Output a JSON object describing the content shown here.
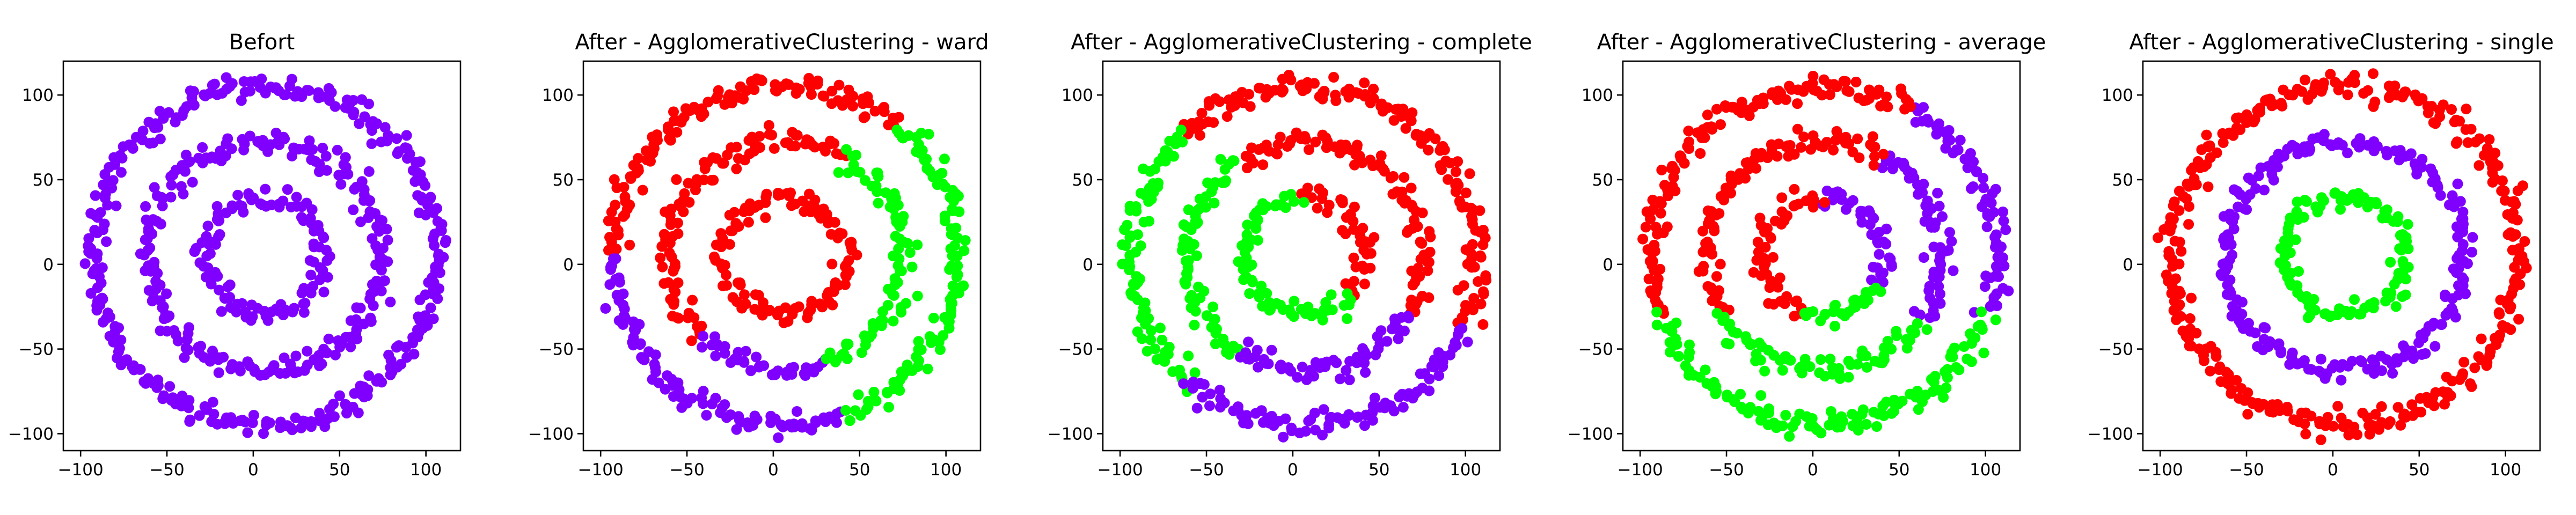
{
  "chart_data": [
    {
      "type": "scatter",
      "title": "Befort",
      "xlim": [
        -110,
        120
      ],
      "ylim": [
        -110,
        120
      ],
      "xticks": [
        -100,
        -50,
        0,
        50,
        100
      ],
      "yticks": [
        -100,
        -50,
        0,
        50,
        100
      ],
      "tick_labels_x": [
        "−100",
        "−50",
        "0",
        "50",
        "100"
      ],
      "tick_labels_y": [
        "−100",
        "−50",
        "0",
        "50",
        "100"
      ],
      "rings": [
        {
          "radius": 35,
          "center": [
            7,
            5
          ]
        },
        {
          "radius": 68,
          "center": [
            7,
            5
          ]
        },
        {
          "radius": 100,
          "center": [
            7,
            5
          ]
        }
      ],
      "point_noise": 5,
      "colors": {
        "purple": "#8000ff",
        "red": "#ff0000",
        "green": "#00ff00"
      },
      "segments": [
        {
          "ring": 0,
          "from": 0,
          "to": 360,
          "color": "purple"
        },
        {
          "ring": 1,
          "from": 0,
          "to": 360,
          "color": "purple"
        },
        {
          "ring": 2,
          "from": 0,
          "to": 360,
          "color": "purple"
        }
      ]
    },
    {
      "type": "scatter",
      "title": "After - AgglomerativeClustering - ward",
      "xlim": [
        -110,
        120
      ],
      "ylim": [
        -110,
        120
      ],
      "xticks": [
        -100,
        -50,
        0,
        50,
        100
      ],
      "yticks": [
        -100,
        -50,
        0,
        50,
        100
      ],
      "tick_labels_x": [
        "−100",
        "−50",
        "0",
        "50",
        "100"
      ],
      "tick_labels_y": [
        "−100",
        "−50",
        "0",
        "50",
        "100"
      ],
      "rings": [
        {
          "radius": 35,
          "center": [
            7,
            5
          ]
        },
        {
          "radius": 68,
          "center": [
            7,
            5
          ]
        },
        {
          "radius": 100,
          "center": [
            7,
            5
          ]
        }
      ],
      "point_noise": 5,
      "colors": {
        "purple": "#8000ff",
        "red": "#ff0000",
        "green": "#00ff00"
      },
      "segments": [
        {
          "ring": 0,
          "from": 0,
          "to": 360,
          "color": "red"
        },
        {
          "ring": 1,
          "from": 60,
          "to": 225,
          "color": "red"
        },
        {
          "ring": 1,
          "from": 225,
          "to": 290,
          "color": "purple"
        },
        {
          "ring": 1,
          "from": -70,
          "to": 60,
          "color": "green"
        },
        {
          "ring": 2,
          "from": 50,
          "to": 180,
          "color": "red"
        },
        {
          "ring": 2,
          "from": 180,
          "to": 290,
          "color": "purple"
        },
        {
          "ring": 2,
          "from": -70,
          "to": 50,
          "color": "green"
        }
      ]
    },
    {
      "type": "scatter",
      "title": "After - AgglomerativeClustering - complete",
      "xlim": [
        -110,
        120
      ],
      "ylim": [
        -110,
        120
      ],
      "xticks": [
        -100,
        -50,
        0,
        50,
        100
      ],
      "yticks": [
        -100,
        -50,
        0,
        50,
        100
      ],
      "tick_labels_x": [
        "−100",
        "−50",
        "0",
        "50",
        "100"
      ],
      "tick_labels_y": [
        "−100",
        "−50",
        "0",
        "50",
        "100"
      ],
      "rings": [
        {
          "radius": 35,
          "center": [
            7,
            5
          ]
        },
        {
          "radius": 68,
          "center": [
            7,
            5
          ]
        },
        {
          "radius": 100,
          "center": [
            7,
            5
          ]
        }
      ],
      "point_noise": 5,
      "colors": {
        "purple": "#8000ff",
        "red": "#ff0000",
        "green": "#00ff00"
      },
      "segments": [
        {
          "ring": 0,
          "from": -40,
          "to": 95,
          "color": "red"
        },
        {
          "ring": 0,
          "from": 95,
          "to": 320,
          "color": "green"
        },
        {
          "ring": 1,
          "from": -30,
          "to": 125,
          "color": "red"
        },
        {
          "ring": 1,
          "from": 125,
          "to": 235,
          "color": "green"
        },
        {
          "ring": 1,
          "from": 235,
          "to": 330,
          "color": "purple"
        },
        {
          "ring": 2,
          "from": -25,
          "to": 135,
          "color": "red"
        },
        {
          "ring": 2,
          "from": 135,
          "to": 228,
          "color": "green"
        },
        {
          "ring": 2,
          "from": 228,
          "to": 335,
          "color": "purple"
        }
      ]
    },
    {
      "type": "scatter",
      "title": "After - AgglomerativeClustering - average",
      "xlim": [
        -110,
        120
      ],
      "ylim": [
        -110,
        120
      ],
      "xticks": [
        -100,
        -50,
        0,
        50,
        100
      ],
      "yticks": [
        -100,
        -50,
        0,
        50,
        100
      ],
      "tick_labels_x": [
        "−100",
        "−50",
        "0",
        "50",
        "100"
      ],
      "tick_labels_y": [
        "−100",
        "−50",
        "0",
        "50",
        "100"
      ],
      "rings": [
        {
          "radius": 35,
          "center": [
            7,
            5
          ]
        },
        {
          "radius": 68,
          "center": [
            7,
            5
          ]
        },
        {
          "radius": 100,
          "center": [
            7,
            5
          ]
        }
      ],
      "point_noise": 5,
      "colors": {
        "purple": "#8000ff",
        "red": "#ff0000",
        "green": "#00ff00"
      },
      "segments": [
        {
          "ring": 0,
          "from": -30,
          "to": 95,
          "color": "purple"
        },
        {
          "ring": 0,
          "from": 95,
          "to": 250,
          "color": "red"
        },
        {
          "ring": 0,
          "from": 250,
          "to": 330,
          "color": "green"
        },
        {
          "ring": 1,
          "from": -35,
          "to": 60,
          "color": "purple"
        },
        {
          "ring": 1,
          "from": 60,
          "to": 210,
          "color": "red"
        },
        {
          "ring": 1,
          "from": 210,
          "to": 325,
          "color": "green"
        },
        {
          "ring": 2,
          "from": -20,
          "to": 60,
          "color": "purple"
        },
        {
          "ring": 2,
          "from": 60,
          "to": 200,
          "color": "red"
        },
        {
          "ring": 2,
          "from": 200,
          "to": 340,
          "color": "green"
        }
      ]
    },
    {
      "type": "scatter",
      "title": "After - AgglomerativeClustering - single",
      "xlim": [
        -110,
        120
      ],
      "ylim": [
        -110,
        120
      ],
      "xticks": [
        -100,
        -50,
        0,
        50,
        100
      ],
      "yticks": [
        -100,
        -50,
        0,
        50,
        100
      ],
      "tick_labels_x": [
        "−100",
        "−50",
        "0",
        "50",
        "100"
      ],
      "tick_labels_y": [
        "−100",
        "−50",
        "0",
        "50",
        "100"
      ],
      "rings": [
        {
          "radius": 35,
          "center": [
            7,
            5
          ]
        },
        {
          "radius": 68,
          "center": [
            7,
            5
          ]
        },
        {
          "radius": 100,
          "center": [
            7,
            5
          ]
        }
      ],
      "point_noise": 5,
      "colors": {
        "purple": "#8000ff",
        "red": "#ff0000",
        "green": "#00ff00"
      },
      "segments": [
        {
          "ring": 0,
          "from": 0,
          "to": 360,
          "color": "green"
        },
        {
          "ring": 1,
          "from": 0,
          "to": 360,
          "color": "purple"
        },
        {
          "ring": 2,
          "from": 0,
          "to": 360,
          "color": "red"
        }
      ]
    }
  ]
}
